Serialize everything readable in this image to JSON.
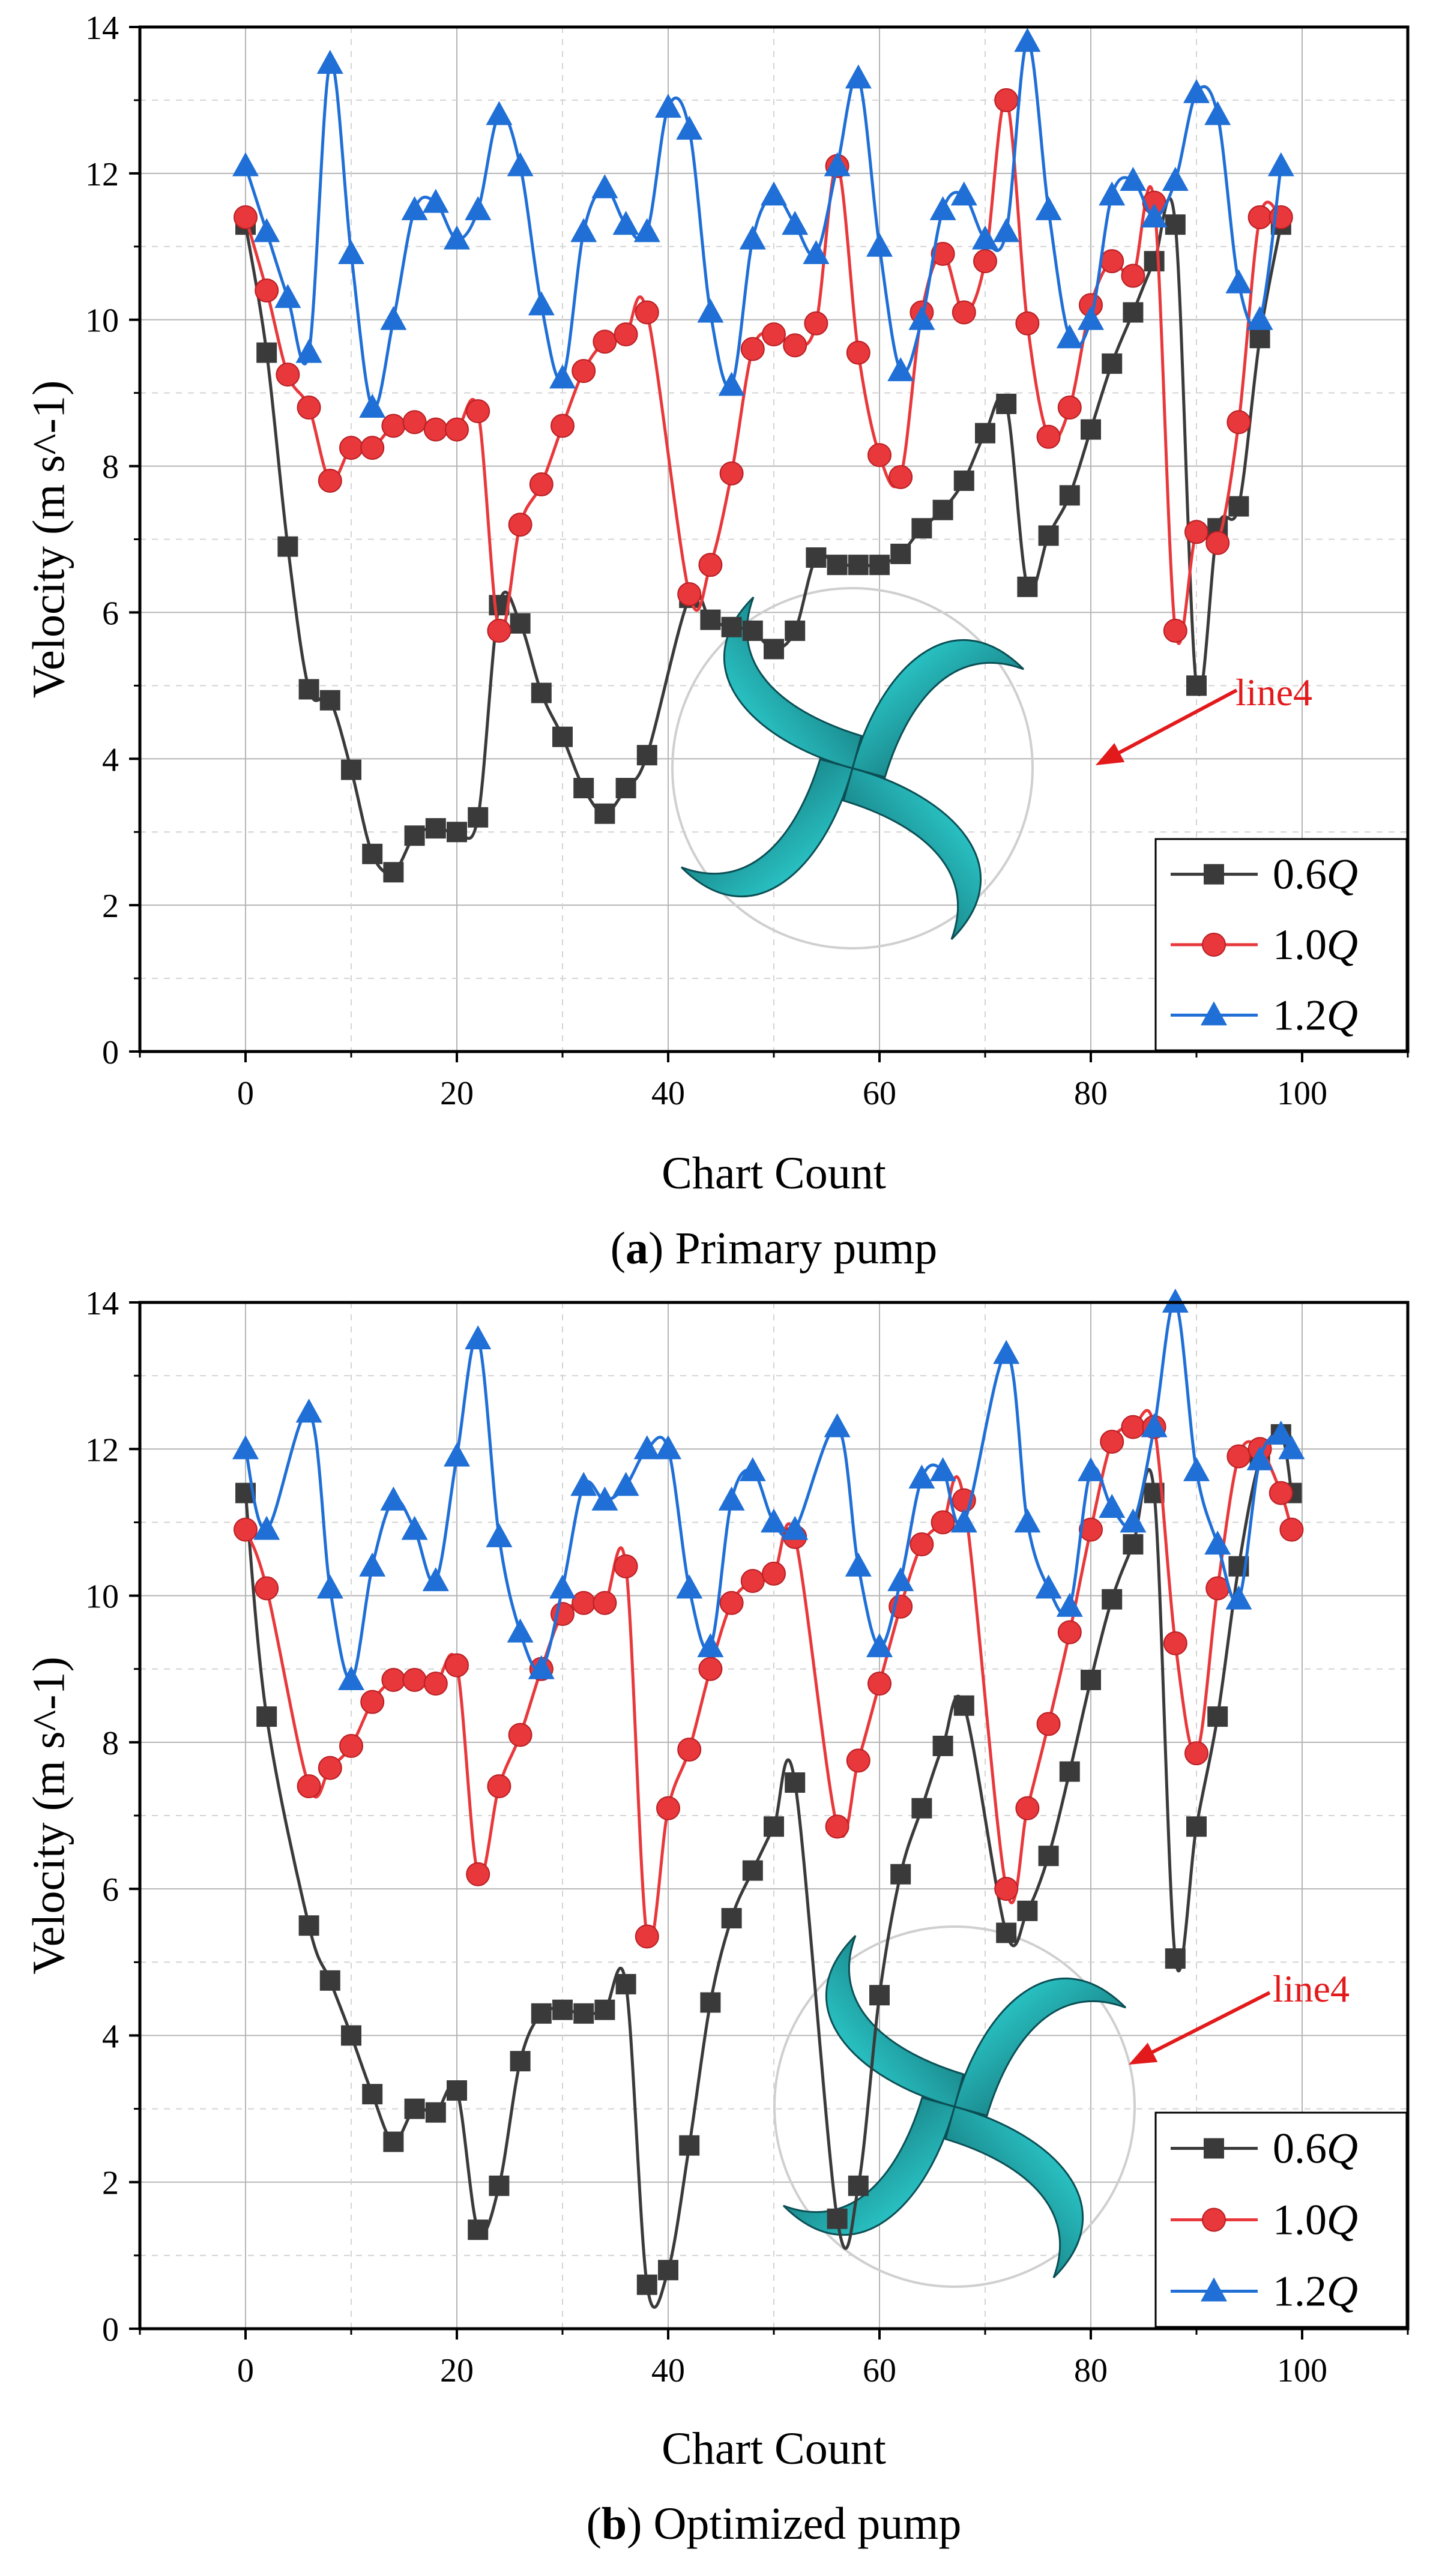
{
  "colors": {
    "series_0_6Q": "#3a3a3a",
    "series_1_0Q": "#e8383b",
    "series_1_2Q": "#1f6fd6",
    "annotation": "#e31a1c",
    "impeller_light": "#33e6e6",
    "impeller_dark": "#0b4f55"
  },
  "chart_data": [
    {
      "type": "line",
      "title": "",
      "caption_letter": "a",
      "caption_text": "Primary pump",
      "xlabel": "Chart Count",
      "ylabel": "Velocity (m s^-1)",
      "xlim": [
        -10,
        110
      ],
      "ylim": [
        0,
        14
      ],
      "xticks": [
        0,
        20,
        40,
        60,
        80,
        100
      ],
      "yticks": [
        0,
        2,
        4,
        6,
        8,
        10,
        12,
        14
      ],
      "grid": true,
      "legend_position": "bottom-right",
      "annotation": "line4",
      "series": [
        {
          "name": "0.6",
          "name_suffix": "Q",
          "marker": "square",
          "x": [
            0,
            2,
            4,
            6,
            8,
            10,
            12,
            14,
            16,
            18,
            20,
            22,
            24,
            26,
            28,
            30,
            32,
            34,
            36,
            38,
            42,
            44,
            46,
            48,
            50,
            52,
            54,
            56,
            58,
            60,
            62,
            64,
            66,
            68,
            70,
            72,
            74,
            76,
            78,
            80,
            82,
            84,
            86,
            88,
            90,
            92,
            94,
            96,
            98
          ],
          "values": [
            11.3,
            9.55,
            6.9,
            4.95,
            4.8,
            3.85,
            2.7,
            2.45,
            2.95,
            3.05,
            3.0,
            3.2,
            6.1,
            5.85,
            4.9,
            4.3,
            3.6,
            3.25,
            3.6,
            4.05,
            6.2,
            5.9,
            5.8,
            5.75,
            5.5,
            5.75,
            6.75,
            6.65,
            6.65,
            6.65,
            6.8,
            7.15,
            7.4,
            7.8,
            8.45,
            8.85,
            6.35,
            7.05,
            7.6,
            8.5,
            9.4,
            10.1,
            10.8,
            11.3,
            5.0,
            7.15,
            7.45,
            9.75,
            11.3
          ]
        },
        {
          "name": "1.0",
          "name_suffix": "Q",
          "marker": "circle",
          "x": [
            0,
            2,
            4,
            6,
            8,
            10,
            12,
            14,
            16,
            18,
            20,
            22,
            24,
            26,
            28,
            30,
            32,
            34,
            36,
            38,
            42,
            44,
            46,
            48,
            50,
            52,
            54,
            56,
            58,
            60,
            62,
            64,
            66,
            68,
            70,
            72,
            74,
            76,
            78,
            80,
            82,
            84,
            86,
            88,
            90,
            92,
            94,
            96,
            98
          ],
          "values": [
            11.4,
            10.4,
            9.25,
            8.8,
            7.8,
            8.25,
            8.25,
            8.55,
            8.6,
            8.5,
            8.5,
            8.75,
            5.75,
            7.2,
            7.75,
            8.55,
            9.3,
            9.7,
            9.8,
            10.1,
            6.25,
            6.65,
            7.9,
            9.6,
            9.8,
            9.65,
            9.95,
            12.1,
            9.55,
            8.15,
            7.85,
            10.1,
            10.9,
            10.1,
            10.8,
            13.0,
            9.95,
            8.4,
            8.8,
            10.2,
            10.8,
            10.6,
            11.6,
            5.75,
            7.1,
            6.95,
            8.6,
            11.4,
            11.4
          ]
        },
        {
          "name": "1.2",
          "name_suffix": "Q",
          "marker": "triangle",
          "x": [
            0,
            2,
            4,
            6,
            8,
            10,
            12,
            14,
            16,
            18,
            20,
            22,
            24,
            26,
            28,
            30,
            32,
            34,
            36,
            38,
            40,
            42,
            44,
            46,
            48,
            50,
            52,
            54,
            56,
            58,
            60,
            62,
            64,
            66,
            68,
            70,
            72,
            74,
            76,
            78,
            80,
            82,
            84,
            86,
            88,
            90,
            92,
            94,
            96,
            98
          ],
          "values": [
            12.1,
            11.2,
            10.3,
            9.55,
            13.5,
            10.9,
            8.8,
            10.0,
            11.5,
            11.6,
            11.1,
            11.5,
            12.8,
            12.1,
            10.2,
            9.2,
            11.2,
            11.8,
            11.3,
            11.2,
            12.9,
            12.6,
            10.1,
            9.1,
            11.1,
            11.7,
            11.3,
            10.9,
            12.1,
            13.3,
            11.0,
            9.3,
            10.0,
            11.5,
            11.7,
            11.1,
            11.2,
            13.8,
            11.5,
            9.75,
            10.0,
            11.7,
            11.9,
            11.4,
            11.9,
            13.1,
            12.8,
            10.5,
            10.0,
            12.1
          ]
        }
      ]
    },
    {
      "type": "line",
      "title": "",
      "caption_letter": "b",
      "caption_text": "Optimized pump",
      "xlabel": "Chart Count",
      "ylabel": "Velocity (m s^-1)",
      "xlim": [
        -10,
        110
      ],
      "ylim": [
        0,
        14
      ],
      "xticks": [
        0,
        20,
        40,
        60,
        80,
        100
      ],
      "yticks": [
        0,
        2,
        4,
        6,
        8,
        10,
        12,
        14
      ],
      "grid": true,
      "legend_position": "bottom-right",
      "annotation": "line4",
      "series": [
        {
          "name": "0.6",
          "name_suffix": "Q",
          "marker": "square",
          "x": [
            0,
            2,
            6,
            8,
            10,
            12,
            14,
            16,
            18,
            20,
            22,
            24,
            26,
            28,
            30,
            32,
            34,
            36,
            38,
            40,
            42,
            44,
            46,
            48,
            50,
            52,
            56,
            58,
            60,
            62,
            64,
            66,
            68,
            72,
            74,
            76,
            78,
            80,
            82,
            84,
            86,
            88,
            90,
            92,
            94,
            96,
            98,
            99
          ],
          "values": [
            11.4,
            8.35,
            5.5,
            4.75,
            4.0,
            3.2,
            2.55,
            3.0,
            2.95,
            3.25,
            1.35,
            1.95,
            3.65,
            4.3,
            4.35,
            4.3,
            4.35,
            4.7,
            0.6,
            0.8,
            2.5,
            4.45,
            5.6,
            6.25,
            6.85,
            7.45,
            1.5,
            1.95,
            4.55,
            6.2,
            7.1,
            7.95,
            8.5,
            5.4,
            5.7,
            6.45,
            7.6,
            8.85,
            9.95,
            10.7,
            11.4,
            5.05,
            6.85,
            8.35,
            10.4,
            11.85,
            12.2,
            11.4
          ]
        },
        {
          "name": "1.0",
          "name_suffix": "Q",
          "marker": "circle",
          "x": [
            0,
            2,
            6,
            8,
            10,
            12,
            14,
            16,
            18,
            20,
            22,
            24,
            26,
            28,
            30,
            32,
            34,
            36,
            38,
            40,
            42,
            44,
            46,
            48,
            50,
            52,
            56,
            58,
            60,
            62,
            64,
            66,
            68,
            72,
            74,
            76,
            78,
            80,
            82,
            84,
            86,
            88,
            90,
            92,
            94,
            96,
            98,
            99
          ],
          "values": [
            10.9,
            10.1,
            7.4,
            7.65,
            7.95,
            8.55,
            8.85,
            8.85,
            8.8,
            9.05,
            6.2,
            7.4,
            8.1,
            9.0,
            9.75,
            9.9,
            9.9,
            10.4,
            5.35,
            7.1,
            7.9,
            9.0,
            9.9,
            10.2,
            10.3,
            10.8,
            6.85,
            7.75,
            8.8,
            9.85,
            10.7,
            11.0,
            11.3,
            6.0,
            7.1,
            8.25,
            9.5,
            10.9,
            12.1,
            12.3,
            12.3,
            9.35,
            7.85,
            10.1,
            11.9,
            12.0,
            11.4,
            10.9
          ]
        },
        {
          "name": "1.2",
          "name_suffix": "Q",
          "marker": "triangle",
          "x": [
            0,
            2,
            6,
            8,
            10,
            12,
            14,
            16,
            18,
            20,
            22,
            24,
            26,
            28,
            30,
            32,
            34,
            36,
            38,
            40,
            42,
            44,
            46,
            48,
            50,
            52,
            56,
            58,
            60,
            62,
            64,
            66,
            68,
            72,
            74,
            76,
            78,
            80,
            82,
            84,
            86,
            88,
            90,
            92,
            94,
            96,
            98,
            99
          ],
          "values": [
            12.0,
            10.9,
            12.5,
            10.1,
            8.85,
            10.4,
            11.3,
            10.9,
            10.2,
            11.9,
            13.5,
            10.8,
            9.5,
            9.0,
            10.1,
            11.5,
            11.3,
            11.5,
            12.0,
            12.0,
            10.1,
            9.3,
            11.3,
            11.7,
            11.0,
            10.9,
            12.3,
            10.4,
            9.3,
            10.2,
            11.6,
            11.7,
            11.0,
            13.3,
            11.0,
            10.1,
            9.85,
            11.7,
            11.2,
            11.0,
            12.3,
            14.0,
            11.7,
            10.7,
            9.95,
            11.85,
            12.2,
            12.0
          ]
        }
      ]
    }
  ]
}
